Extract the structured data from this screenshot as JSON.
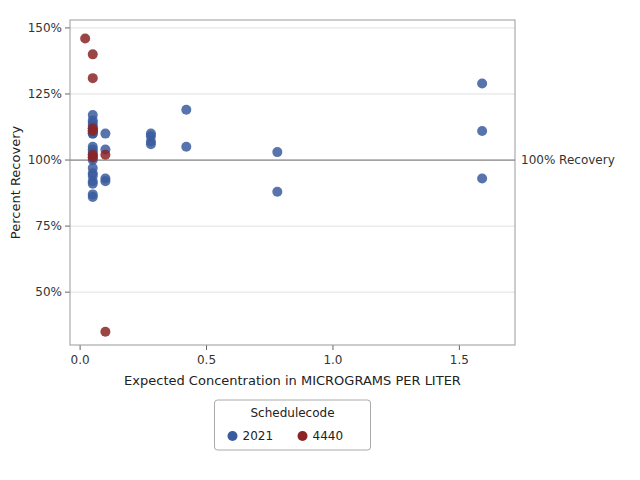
{
  "chart_data": {
    "type": "scatter",
    "xlabel": "Expected Concentration in MICROGRAMS PER LITER",
    "ylabel": "Percent Recovery",
    "legend_title": "Schedulecode",
    "legend": "bottom",
    "grid": "y",
    "xlim": [
      -0.04,
      1.72
    ],
    "ylim": [
      30,
      153
    ],
    "xticks": [
      {
        "value": 0.0,
        "label": "0.0"
      },
      0.5,
      {
        "value": 1.0,
        "label": "1.0"
      },
      1.5
    ],
    "yticks": [
      {
        "value": 50,
        "label": "50%"
      },
      {
        "value": 75,
        "label": "75%"
      },
      {
        "value": 100,
        "label": "100%"
      },
      {
        "value": 125,
        "label": "125%"
      },
      {
        "value": 150,
        "label": "150%"
      }
    ],
    "annotations": [
      {
        "text": "100% Recovery",
        "y": 100
      }
    ],
    "series": [
      {
        "name": "2021",
        "color": "#3a5c9e",
        "x": [
          0.05,
          0.05,
          0.05,
          0.05,
          0.05,
          0.05,
          0.05,
          0.05,
          0.05,
          0.05,
          0.05,
          0.05,
          0.05,
          0.05,
          0.05,
          0.05,
          0.05,
          0.05,
          0.05,
          0.05,
          0.05,
          0.05,
          0.1,
          0.1,
          0.1,
          0.1,
          0.28,
          0.28,
          0.28,
          0.28,
          0.42,
          0.42,
          0.78,
          0.78,
          1.59,
          1.59,
          1.59
        ],
        "values": [
          117,
          115,
          114,
          113,
          112,
          111,
          111,
          110,
          110,
          105,
          104,
          103,
          102,
          101,
          100,
          97,
          95,
          94,
          92,
          91,
          87,
          86,
          110,
          104,
          93,
          92,
          110,
          109,
          107,
          106,
          119,
          105,
          103,
          88,
          129,
          111,
          93
        ]
      },
      {
        "name": "4440",
        "color": "#8b2525",
        "x": [
          0.02,
          0.05,
          0.05,
          0.05,
          0.05,
          0.05,
          0.05,
          0.1,
          0.1
        ],
        "values": [
          146,
          140,
          131,
          112,
          111,
          102,
          101,
          102,
          35
        ]
      }
    ]
  }
}
